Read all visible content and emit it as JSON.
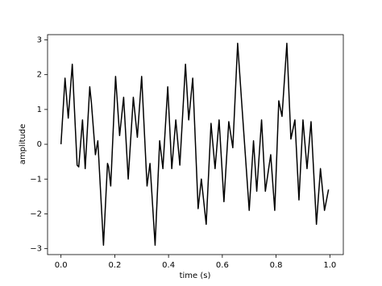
{
  "chart_data": {
    "type": "line",
    "xlabel": "time (s)",
    "ylabel": "amplitude",
    "color": "#000000",
    "x": [
      0,
      0.015,
      0.027,
      0.042,
      0.06,
      0.066,
      0.08,
      0.09,
      0.107,
      0.113,
      0.128,
      0.137,
      0.158,
      0.173,
      0.177,
      0.185,
      0.203,
      0.218,
      0.233,
      0.25,
      0.269,
      0.284,
      0.3,
      0.32,
      0.331,
      0.35,
      0.367,
      0.379,
      0.397,
      0.412,
      0.427,
      0.442,
      0.463,
      0.475,
      0.49,
      0.51,
      0.522,
      0.54,
      0.558,
      0.573,
      0.588,
      0.606,
      0.624,
      0.639,
      0.657,
      0.672,
      0.7,
      0.716,
      0.728,
      0.746,
      0.76,
      0.78,
      0.795,
      0.81,
      0.822,
      0.84,
      0.855,
      0.87,
      0.885,
      0.9,
      0.915,
      0.93,
      0.95,
      0.965,
      0.98,
      0.995
    ],
    "values": [
      0,
      1.9,
      0.75,
      2.3,
      -0.6,
      -0.65,
      0.7,
      -0.7,
      1.65,
      1.2,
      -0.3,
      0.1,
      -2.9,
      -0.55,
      -0.65,
      -1.2,
      1.95,
      0.25,
      1.35,
      -1.0,
      1.35,
      0.2,
      1.95,
      -1.2,
      -0.55,
      -2.9,
      0.1,
      -0.7,
      1.65,
      -0.7,
      0.7,
      -0.6,
      2.3,
      0.7,
      1.9,
      -1.85,
      -1.0,
      -2.3,
      0.6,
      -0.7,
      0.7,
      -1.65,
      0.65,
      -0.1,
      2.9,
      1.2,
      -1.9,
      0.1,
      -1.35,
      0.7,
      -1.35,
      -0.3,
      -1.9,
      1.25,
      0.8,
      2.9,
      0.15,
      0.7,
      -1.6,
      0.7,
      -0.7,
      0.65,
      -2.3,
      -0.7,
      -1.9,
      -1.3
    ],
    "xlim": [
      -0.05,
      1.05
    ],
    "ylim": [
      -3.17,
      3.15
    ],
    "xticks": [
      {
        "value": 0,
        "label": "0.0"
      },
      {
        "value": 0.2,
        "label": "0.2"
      },
      {
        "value": 0.4,
        "label": "0.4"
      },
      {
        "value": 0.6,
        "label": "0.6"
      },
      {
        "value": 0.8,
        "label": "0.8"
      },
      {
        "value": 1,
        "label": "1.0"
      }
    ],
    "yticks": [
      {
        "value": -3,
        "label": "−3"
      },
      {
        "value": -2,
        "label": "−2"
      },
      {
        "value": -1,
        "label": "−1"
      },
      0,
      1,
      2,
      3
    ]
  }
}
